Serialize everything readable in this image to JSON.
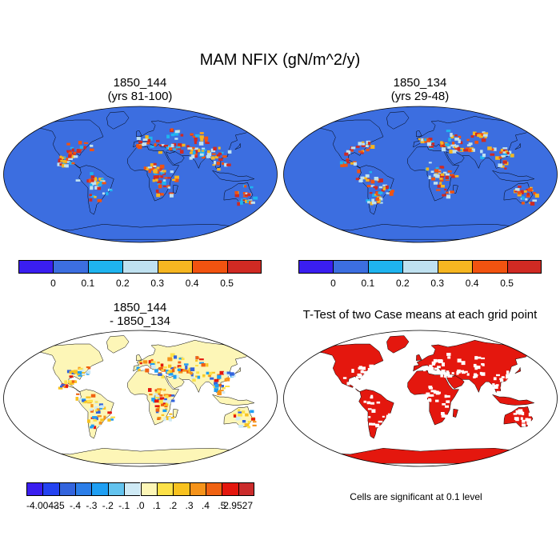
{
  "title": "MAM NFIX (gN/m^2/y)",
  "panels": [
    {
      "id": "p1",
      "title": "1850_144\n(yrs 81-100)",
      "kind": "field"
    },
    {
      "id": "p2",
      "title": "1850_134\n(yrs 29-48)",
      "kind": "field"
    },
    {
      "id": "p3",
      "title": "1850_144\n- 1850_134",
      "kind": "diff"
    },
    {
      "id": "p4",
      "title": "T-Test of two Case means at each grid point",
      "kind": "ttest"
    }
  ],
  "colorbar_top": {
    "colors": [
      "#3a1ef0",
      "#3c6ee0",
      "#1fb4ef",
      "#bfe1f0",
      "#f6b621",
      "#f25310",
      "#d02a23"
    ],
    "labels": [
      "0",
      "0.1",
      "0.2",
      "0.3",
      "0.4",
      "0.5"
    ]
  },
  "colorbar_diff": {
    "colors": [
      "#3a1ef0",
      "#2543f0",
      "#3364dd",
      "#2c7ee8",
      "#1f9ff3",
      "#63c3ee",
      "#cfeaf5",
      "#fdf6b7",
      "#fde148",
      "#f8c21f",
      "#f5931a",
      "#f06212",
      "#e4170e",
      "#cb2c2c"
    ],
    "labels": [
      "-4.0043",
      "-.5",
      "-.4",
      "-.3",
      "-.2",
      "-.1",
      ".0",
      ".1",
      ".2",
      ".3",
      ".4",
      ".5",
      "2.9527"
    ]
  },
  "ttest_note": "Cells are significant at 0.1 level"
}
